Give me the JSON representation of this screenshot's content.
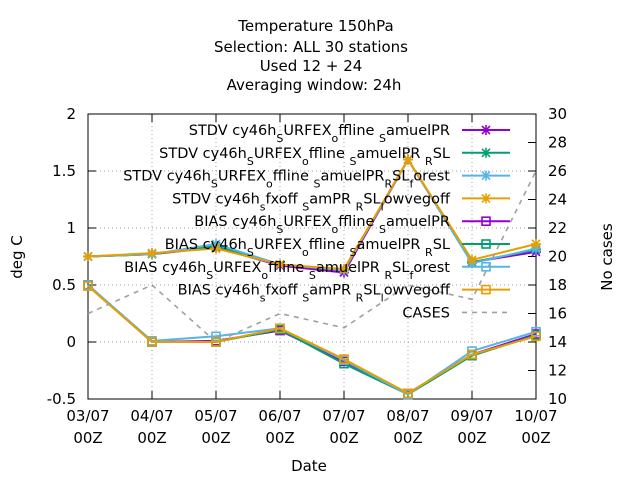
{
  "chart_data": {
    "type": "line",
    "title_lines": [
      "Temperature 150hPa",
      "Selection: ALL      30 stations",
      "Used  12 + 24",
      "Averaging window: 24h"
    ],
    "xlabel": "Date",
    "ylabel": "deg C",
    "y2label": "No cases",
    "x_categories": [
      "03/07\n00Z",
      "04/07\n00Z",
      "05/07\n00Z",
      "06/07\n00Z",
      "07/07\n00Z",
      "08/07\n00Z",
      "09/07\n00Z",
      "10/07\n00Z"
    ],
    "ylim": [
      -0.5,
      2
    ],
    "y_ticks": [
      "-0.5",
      "0",
      "0.5",
      "1",
      "1.5",
      "2"
    ],
    "y2lim": [
      10,
      30
    ],
    "y2_ticks": [
      "10",
      "12",
      "14",
      "16",
      "18",
      "20",
      "22",
      "24",
      "26",
      "28",
      "30"
    ],
    "grid": "dotted, x and y",
    "legend_position": "top-right",
    "colors": {
      "purple": "#9400d3",
      "green": "#009e73",
      "lightblue": "#56b4e9",
      "orange": "#e69f00",
      "cases": "#a0a0a0"
    },
    "series": [
      {
        "name": "STDV cy46h_SURFEX_offline_SamuelPR",
        "color": "#9400d3",
        "marker": "x",
        "axis": "y1",
        "values": [
          0.75,
          0.77,
          0.83,
          0.67,
          0.61,
          1.6,
          0.7,
          0.79
        ]
      },
      {
        "name": "STDV cy46h_SURFEX_offline_SamuelPR_RSL",
        "color": "#009e73",
        "marker": "x",
        "axis": "y1",
        "values": [
          0.75,
          0.77,
          0.84,
          0.68,
          0.63,
          1.6,
          0.7,
          0.81
        ]
      },
      {
        "name": "STDV cy46h_SURFEX_offline_SamuelPR_RSL_forest",
        "color": "#56b4e9",
        "marker": "x",
        "axis": "y1",
        "values": [
          0.75,
          0.77,
          0.86,
          0.68,
          0.63,
          1.6,
          0.69,
          0.82
        ]
      },
      {
        "name": "STDV cy46h_sfxoff_SamPR_RSL_lowvegoff",
        "color": "#e69f00",
        "marker": "x",
        "axis": "y1",
        "values": [
          0.75,
          0.78,
          0.82,
          0.68,
          0.64,
          1.6,
          0.72,
          0.86
        ]
      },
      {
        "name": "BIAS cy46h_SURFEX_offline_SamuelPR",
        "color": "#9400d3",
        "marker": "square",
        "axis": "y1",
        "values": [
          0.5,
          0.0,
          0.01,
          0.1,
          -0.17,
          -0.45,
          -0.11,
          0.07
        ]
      },
      {
        "name": "BIAS cy46h_SURFEX_offline_SamuelPR_RSL",
        "color": "#009e73",
        "marker": "square",
        "axis": "y1",
        "values": [
          0.5,
          0.0,
          0.0,
          0.11,
          -0.19,
          -0.46,
          -0.12,
          0.06
        ]
      },
      {
        "name": "BIAS cy46h_SURFEX_offline_SamuelPR_RSL_forest",
        "color": "#56b4e9",
        "marker": "square",
        "axis": "y1",
        "values": [
          0.5,
          0.01,
          0.05,
          0.12,
          -0.16,
          -0.46,
          -0.08,
          0.09
        ]
      },
      {
        "name": "BIAS cy46h_sfxoff_SamPR_RSL_lowvegoff",
        "color": "#e69f00",
        "marker": "square",
        "axis": "y1",
        "values": [
          0.49,
          0.0,
          0.0,
          0.12,
          -0.15,
          -0.45,
          -0.11,
          0.05
        ]
      },
      {
        "name": "CASES",
        "color": "#a0a0a0",
        "marker": "none",
        "dashed": true,
        "axis": "y2",
        "values": [
          16,
          18,
          14,
          16,
          15,
          18,
          17,
          26
        ]
      }
    ],
    "legend_entries": [
      {
        "prefix": "STDV cy46h",
        "parts": [
          [
            "S",
            "sub"
          ],
          [
            "URFEX",
            ""
          ],
          [
            "o",
            "sub"
          ],
          [
            "ffline ",
            ""
          ],
          [
            "S",
            "sub"
          ],
          [
            "amuelPR",
            ""
          ]
        ]
      },
      {
        "prefix": "STDV cy46h",
        "parts": [
          [
            "S",
            "sub"
          ],
          [
            "URFEX",
            ""
          ],
          [
            "o",
            "sub"
          ],
          [
            "ffline ",
            ""
          ],
          [
            "S",
            "sub"
          ],
          [
            "amuelPR ",
            ""
          ],
          [
            "R",
            "sub"
          ],
          [
            "SL",
            ""
          ]
        ]
      },
      {
        "prefix": "STDV cy46h",
        "parts": [
          [
            "S",
            "sub"
          ],
          [
            "URFEX",
            ""
          ],
          [
            "o",
            "sub"
          ],
          [
            "ffline ",
            ""
          ],
          [
            "S",
            "sub"
          ],
          [
            "amuelPR",
            ""
          ],
          [
            "R",
            "sub"
          ],
          [
            "SL",
            ""
          ],
          [
            "f",
            "sub"
          ],
          [
            "orest",
            ""
          ]
        ]
      },
      {
        "prefix": "STDV cy46h",
        "parts": [
          [
            "s",
            "sub"
          ],
          [
            "fxoff ",
            ""
          ],
          [
            "S",
            "sub"
          ],
          [
            "amPR ",
            ""
          ],
          [
            "R",
            "sub"
          ],
          [
            "SL",
            ""
          ],
          [
            "l",
            "sub"
          ],
          [
            "owvegoff",
            ""
          ]
        ]
      },
      {
        "prefix": "BIAS cy46h",
        "parts": [
          [
            "S",
            "sub"
          ],
          [
            "URFEX",
            ""
          ],
          [
            "o",
            "sub"
          ],
          [
            "ffline ",
            ""
          ],
          [
            "S",
            "sub"
          ],
          [
            "amuelPR",
            ""
          ]
        ]
      },
      {
        "prefix": "BIAS cy46h",
        "parts": [
          [
            "S",
            "sub"
          ],
          [
            "URFEX",
            ""
          ],
          [
            "o",
            "sub"
          ],
          [
            "ffline ",
            ""
          ],
          [
            "S",
            "sub"
          ],
          [
            "amuelPR ",
            ""
          ],
          [
            "R",
            "sub"
          ],
          [
            "SL",
            ""
          ]
        ]
      },
      {
        "prefix": "BIAS cy46h",
        "parts": [
          [
            "S",
            "sub"
          ],
          [
            "URFEX",
            ""
          ],
          [
            "o",
            "sub"
          ],
          [
            "ffline ",
            ""
          ],
          [
            "S",
            "sub"
          ],
          [
            "amuelPR ",
            ""
          ],
          [
            "R",
            "sub"
          ],
          [
            "SL",
            ""
          ],
          [
            "f",
            "sub"
          ],
          [
            "orest",
            ""
          ]
        ]
      },
      {
        "prefix": "BIAS cy46h",
        "parts": [
          [
            "s",
            "sub"
          ],
          [
            "fxoff ",
            ""
          ],
          [
            "S",
            "sub"
          ],
          [
            "amPR ",
            ""
          ],
          [
            "R",
            "sub"
          ],
          [
            "SL",
            ""
          ],
          [
            "l",
            "sub"
          ],
          [
            "owvegoff",
            ""
          ]
        ]
      },
      {
        "prefix": "CASES",
        "parts": []
      }
    ]
  }
}
